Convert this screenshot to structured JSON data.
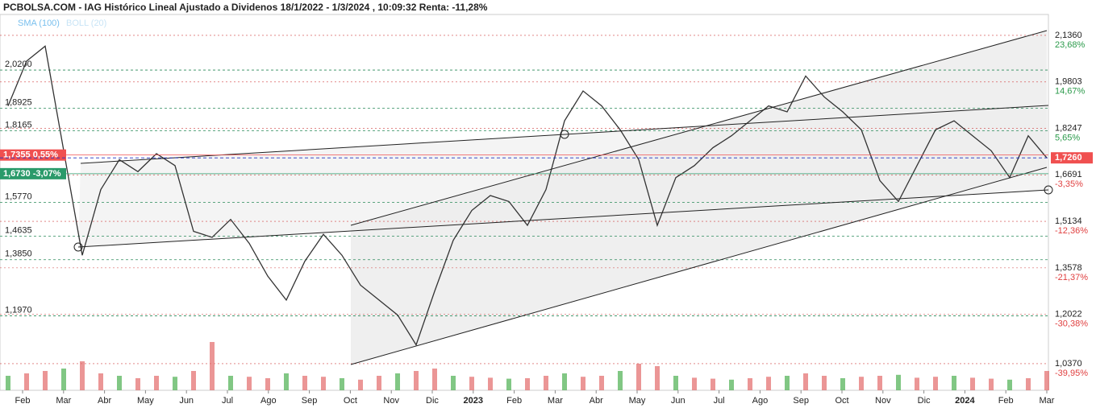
{
  "chart_data": {
    "type": "line",
    "title": "PCBOLSA.COM - IAG Histórico Lineal Ajustado a Dividenos 18/1/2022 - 1/3/2024 , 10:09:32 Renta: -11,28%",
    "legend": [
      "SMA (100)",
      "BOLL (20)"
    ],
    "x_labels": [
      "Feb",
      "Mar",
      "Abr",
      "May",
      "Jun",
      "Jul",
      "Ago",
      "Sep",
      "Oct",
      "Nov",
      "Dic",
      "2023",
      "Feb",
      "Mar",
      "Abr",
      "May",
      "Jun",
      "Jul",
      "Ago",
      "Sep",
      "Oct",
      "Nov",
      "Dic",
      "2024",
      "Feb",
      "Mar"
    ],
    "series": [
      {
        "name": "IAG",
        "color": "#333333",
        "values": [
          1.9,
          2.05,
          2.1,
          1.75,
          1.4,
          1.62,
          1.72,
          1.68,
          1.74,
          1.7,
          1.48,
          1.46,
          1.52,
          1.44,
          1.33,
          1.25,
          1.38,
          1.47,
          1.4,
          1.3,
          1.25,
          1.2,
          1.1,
          1.28,
          1.45,
          1.55,
          1.6,
          1.58,
          1.5,
          1.62,
          1.85,
          1.95,
          1.9,
          1.82,
          1.72,
          1.5,
          1.66,
          1.7,
          1.76,
          1.8,
          1.85,
          1.9,
          1.88,
          2.0,
          1.93,
          1.88,
          1.82,
          1.65,
          1.58,
          1.7,
          1.82,
          1.85,
          1.8,
          1.75,
          1.66,
          1.8,
          1.726
        ]
      }
    ],
    "volume": [
      30,
      35,
      40,
      45,
      60,
      35,
      30,
      25,
      30,
      28,
      40,
      100,
      30,
      28,
      25,
      35,
      30,
      28,
      25,
      22,
      30,
      35,
      40,
      45,
      30,
      28,
      26,
      24,
      25,
      30,
      35,
      28,
      30,
      40,
      55,
      50,
      30,
      26,
      24,
      22,
      25,
      28,
      30,
      35,
      30,
      25,
      28,
      30,
      32,
      26,
      28,
      30,
      26,
      24,
      22,
      25,
      40
    ],
    "ylim": [
      0.948,
      2.206
    ],
    "y2ticks": [
      {
        "value": 2.136,
        "label": "2,1360"
      },
      {
        "value": 1.9803,
        "label": "1,9803"
      },
      {
        "value": 1.8247,
        "label": "1,8247"
      },
      {
        "value": 1.6691,
        "label": "1,6691"
      },
      {
        "value": 1.5134,
        "label": "1,5134"
      },
      {
        "value": 1.3578,
        "label": "1,3578"
      },
      {
        "value": 1.2022,
        "label": "1,2022"
      },
      {
        "value": 1.037,
        "label": "1,0370"
      }
    ],
    "y2_pct_labels": [
      "23,68%",
      "14,67%",
      "5,65%",
      "-3,35%",
      "-12,36%",
      "-21,37%",
      "-30,38%",
      "-39,95%"
    ],
    "levels": [
      {
        "value": 2.02,
        "label": "2,0200"
      },
      {
        "value": 1.8925,
        "label": "1,8925"
      },
      {
        "value": 1.8165,
        "label": "1,8165"
      },
      {
        "value": 1.577,
        "label": "1,5770"
      },
      {
        "value": 1.4635,
        "label": "1,4635"
      },
      {
        "value": 1.385,
        "label": "1,3850"
      },
      {
        "value": 1.197,
        "label": "1,1970"
      }
    ],
    "markers": [
      {
        "value": 1.7355,
        "label": "1,7355 0,55%",
        "color": "#f05050"
      },
      {
        "value": 1.673,
        "label": "1,6730 -3,07%",
        "color": "#2a9a6a"
      }
    ],
    "last": {
      "value": 1.726,
      "label": "1,7260",
      "color": "#f05050"
    }
  }
}
